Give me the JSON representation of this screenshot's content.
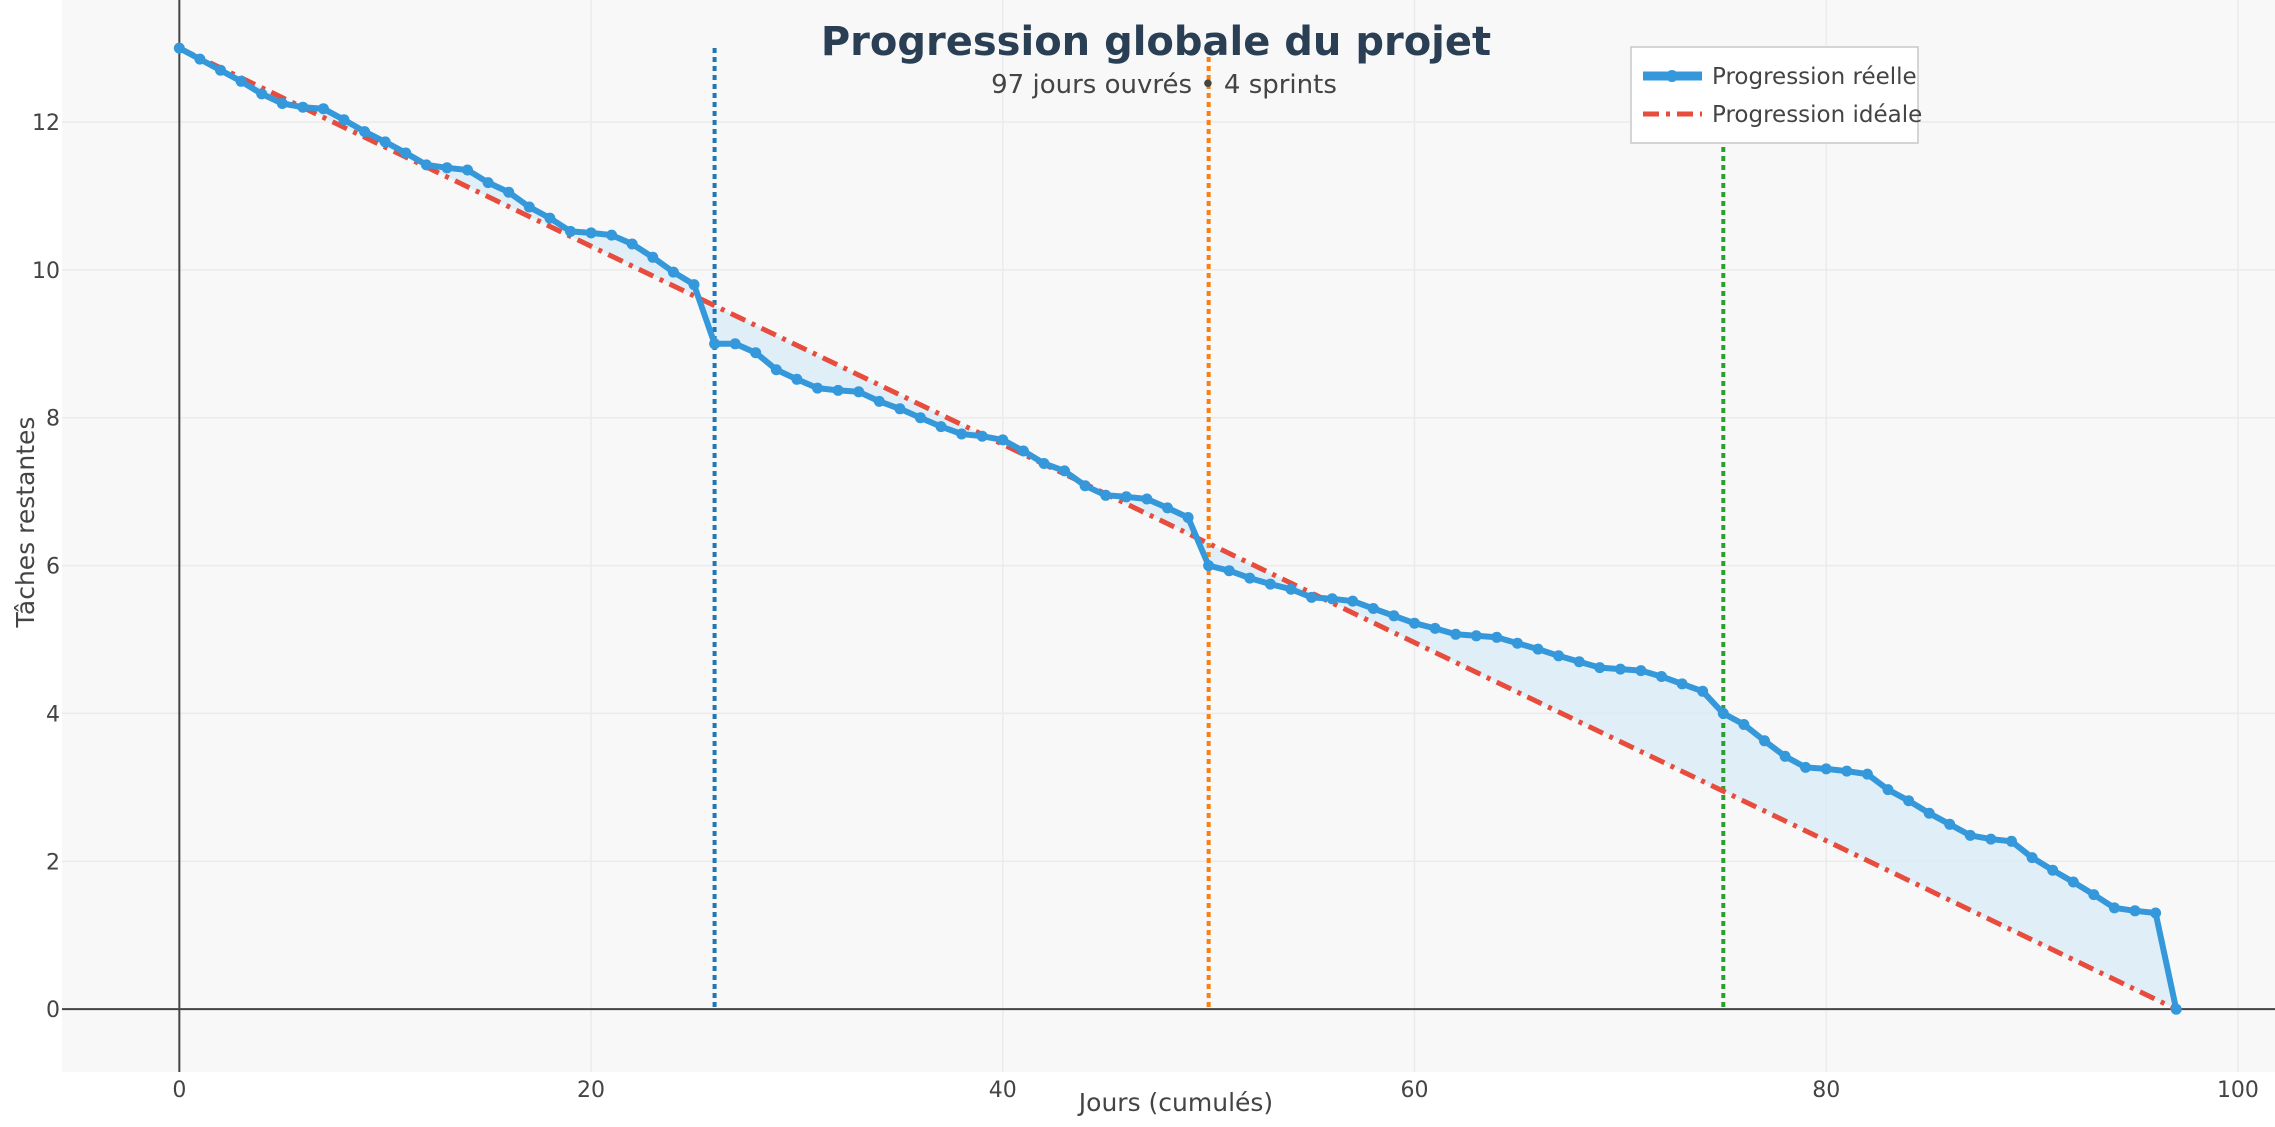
{
  "colors": {
    "actual": "#3498db",
    "ideal": "#e74c3c",
    "fill": "#d6eaf8",
    "sprint_lines": [
      "#1f77b4",
      "#ff7f0e",
      "#2ca02c"
    ],
    "plot_bg": "#f8f8f8",
    "grid": "#ebebeb",
    "axis": "#444444"
  },
  "chart_data": {
    "type": "line",
    "title": "Progression globale du projet",
    "subtitle": "97 jours ouvrés • 4 sprints",
    "xlabel": "Jours (cumulés)",
    "ylabel": "Tâches restantes",
    "xlim": [
      -5.7,
      101.8
    ],
    "ylim": [
      -0.85,
      13.65
    ],
    "x_ticks": [
      0,
      20,
      40,
      60,
      80,
      100
    ],
    "y_ticks": [
      0,
      2,
      4,
      6,
      8,
      10,
      12
    ],
    "grid": true,
    "legend_position": "top-right",
    "sprint_boundaries": [
      26,
      50,
      75
    ],
    "series": [
      {
        "name": "Progression réelle",
        "style": "solid-with-markers",
        "points": [
          [
            0,
            13.0
          ],
          [
            1,
            12.85
          ],
          [
            2,
            12.7
          ],
          [
            3,
            12.55
          ],
          [
            4,
            12.38
          ],
          [
            5,
            12.25
          ],
          [
            6,
            12.2
          ],
          [
            7,
            12.18
          ],
          [
            8,
            12.03
          ],
          [
            9,
            11.87
          ],
          [
            10,
            11.73
          ],
          [
            11,
            11.58
          ],
          [
            12,
            11.42
          ],
          [
            13,
            11.38
          ],
          [
            14,
            11.35
          ],
          [
            15,
            11.18
          ],
          [
            16,
            11.05
          ],
          [
            17,
            10.85
          ],
          [
            18,
            10.7
          ],
          [
            19,
            10.52
          ],
          [
            20,
            10.5
          ],
          [
            21,
            10.47
          ],
          [
            22,
            10.35
          ],
          [
            23,
            10.17
          ],
          [
            24,
            9.97
          ],
          [
            25,
            9.8
          ],
          [
            26,
            9.0
          ],
          [
            27,
            9.0
          ],
          [
            28,
            8.88
          ],
          [
            29,
            8.65
          ],
          [
            30,
            8.52
          ],
          [
            31,
            8.4
          ],
          [
            32,
            8.37
          ],
          [
            33,
            8.35
          ],
          [
            34,
            8.22
          ],
          [
            35,
            8.12
          ],
          [
            36,
            8.0
          ],
          [
            37,
            7.88
          ],
          [
            38,
            7.78
          ],
          [
            39,
            7.75
          ],
          [
            40,
            7.7
          ],
          [
            41,
            7.55
          ],
          [
            42,
            7.38
          ],
          [
            43,
            7.28
          ],
          [
            44,
            7.08
          ],
          [
            45,
            6.95
          ],
          [
            46,
            6.93
          ],
          [
            47,
            6.9
          ],
          [
            48,
            6.78
          ],
          [
            49,
            6.65
          ],
          [
            50,
            6.0
          ],
          [
            51,
            5.93
          ],
          [
            52,
            5.83
          ],
          [
            53,
            5.75
          ],
          [
            54,
            5.68
          ],
          [
            55,
            5.57
          ],
          [
            56,
            5.55
          ],
          [
            57,
            5.52
          ],
          [
            58,
            5.42
          ],
          [
            59,
            5.32
          ],
          [
            60,
            5.22
          ],
          [
            61,
            5.15
          ],
          [
            62,
            5.07
          ],
          [
            63,
            5.05
          ],
          [
            64,
            5.03
          ],
          [
            65,
            4.95
          ],
          [
            66,
            4.87
          ],
          [
            67,
            4.78
          ],
          [
            68,
            4.7
          ],
          [
            69,
            4.62
          ],
          [
            70,
            4.6
          ],
          [
            71,
            4.58
          ],
          [
            72,
            4.5
          ],
          [
            73,
            4.4
          ],
          [
            74,
            4.3
          ],
          [
            75,
            4.0
          ],
          [
            76,
            3.85
          ],
          [
            77,
            3.63
          ],
          [
            78,
            3.42
          ],
          [
            79,
            3.27
          ],
          [
            80,
            3.25
          ],
          [
            81,
            3.22
          ],
          [
            82,
            3.18
          ],
          [
            83,
            2.97
          ],
          [
            84,
            2.82
          ],
          [
            85,
            2.65
          ],
          [
            86,
            2.5
          ],
          [
            87,
            2.35
          ],
          [
            88,
            2.3
          ],
          [
            89,
            2.27
          ],
          [
            90,
            2.05
          ],
          [
            91,
            1.88
          ],
          [
            92,
            1.72
          ],
          [
            93,
            1.55
          ],
          [
            94,
            1.37
          ],
          [
            95,
            1.33
          ],
          [
            96,
            1.3
          ],
          [
            97,
            0.0
          ]
        ]
      },
      {
        "name": "Progression idéale",
        "style": "dash-dot",
        "points": [
          [
            0,
            13.0
          ],
          [
            97,
            0.0
          ]
        ]
      }
    ]
  }
}
